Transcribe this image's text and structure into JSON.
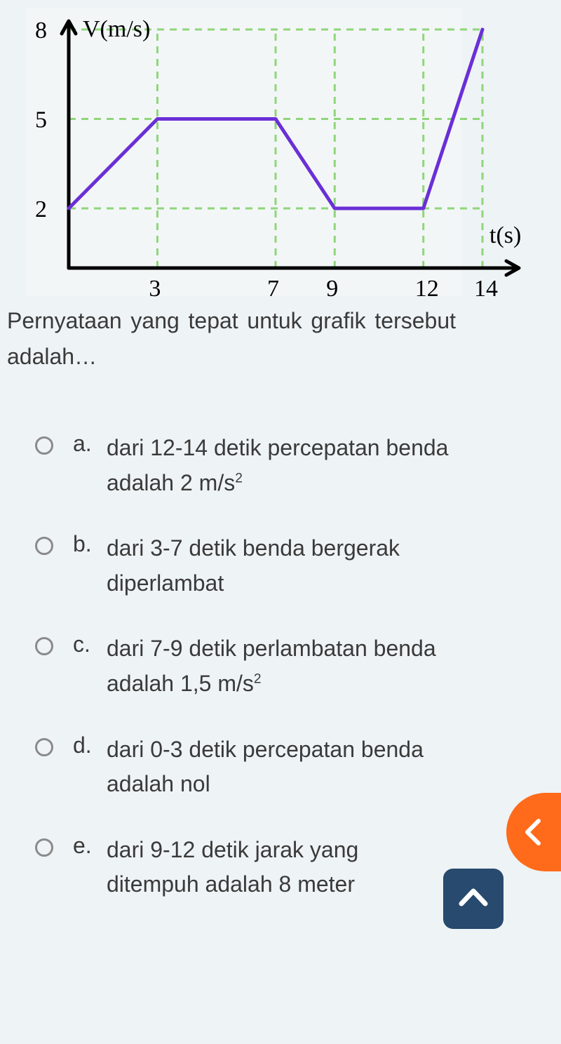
{
  "chart": {
    "type": "line",
    "y_axis_label": "V(m/s)",
    "x_axis_label": "t(s)",
    "y_ticks": [
      8,
      5,
      2
    ],
    "x_ticks": [
      3,
      7,
      9,
      12,
      14
    ],
    "points": [
      {
        "t": 0,
        "v": 2
      },
      {
        "t": 3,
        "v": 5
      },
      {
        "t": 7,
        "v": 5
      },
      {
        "t": 9,
        "v": 2
      },
      {
        "t": 12,
        "v": 2
      },
      {
        "t": 14,
        "v": 8
      }
    ],
    "colors": {
      "axis": "#000000",
      "line": "#6a2fd6",
      "grid": "#8fd67a",
      "text": "#000000",
      "bg": "#f3f6f7"
    },
    "line_width": 5,
    "axis_width": 5,
    "grid_dash": "10 8",
    "tick_fontsize": 34,
    "label_fontsize": 34
  },
  "question": "Pernyataan yang tepat untuk grafik tersebut adalah…",
  "options": [
    {
      "letter": "a.",
      "html": "dari 12-14 detik percepatan benda adalah 2 m/s<sup>2</sup>"
    },
    {
      "letter": "b.",
      "html": "dari 3-7 detik benda bergerak diperlambat"
    },
    {
      "letter": "c.",
      "html": "dari 7-9 detik perlambatan benda adalah 1,5 m/s<sup>2</sup>"
    },
    {
      "letter": "d.",
      "html": "dari 0-3 detik percepatan benda adalah nol"
    },
    {
      "letter": "e.",
      "html": "dari 9-12 detik jarak yang ditempuh adalah 8 meter"
    }
  ],
  "buttons": {
    "fab_color": "#ff6b1a",
    "scrolltop_color": "#274a6e"
  }
}
